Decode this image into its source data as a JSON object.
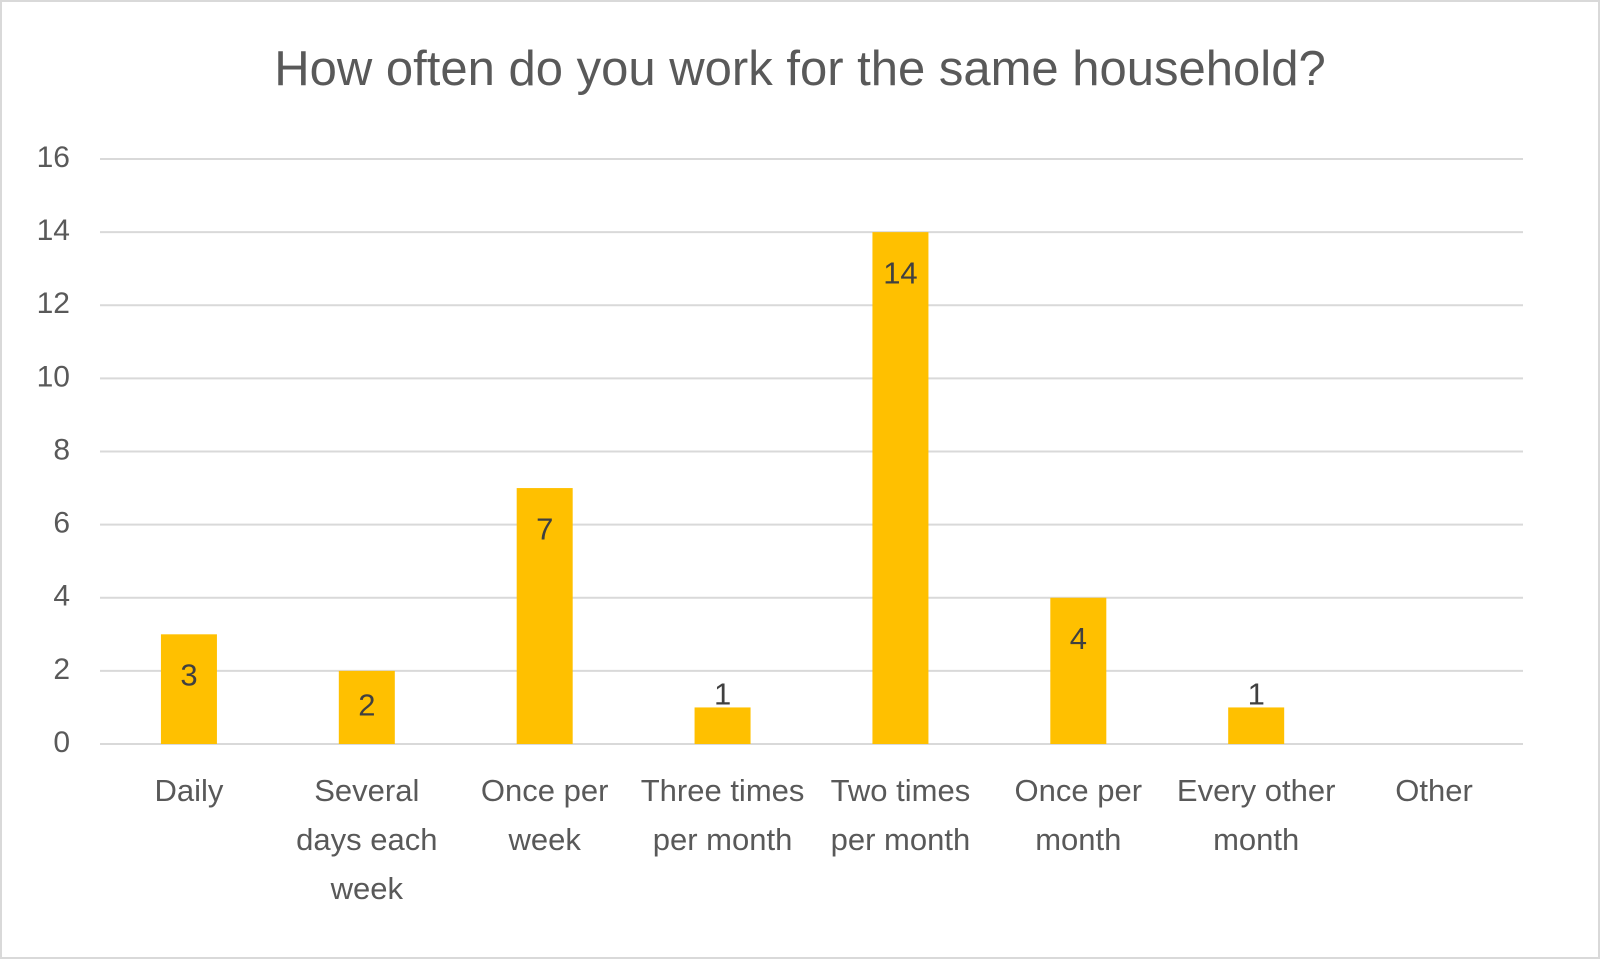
{
  "chart_data": {
    "type": "bar",
    "title": "How often do you work for the same household?",
    "categories": [
      "Daily",
      "Several days each week",
      "Once per week",
      "Three times per month",
      "Two times per month",
      "Once per month",
      "Every other month",
      "Other"
    ],
    "values": [
      3,
      2,
      7,
      1,
      14,
      4,
      1,
      null
    ],
    "color": "#ffc000",
    "ylim": [
      0,
      16
    ],
    "yticks": [
      0,
      2,
      4,
      6,
      8,
      10,
      12,
      14,
      16
    ],
    "grid": true
  }
}
